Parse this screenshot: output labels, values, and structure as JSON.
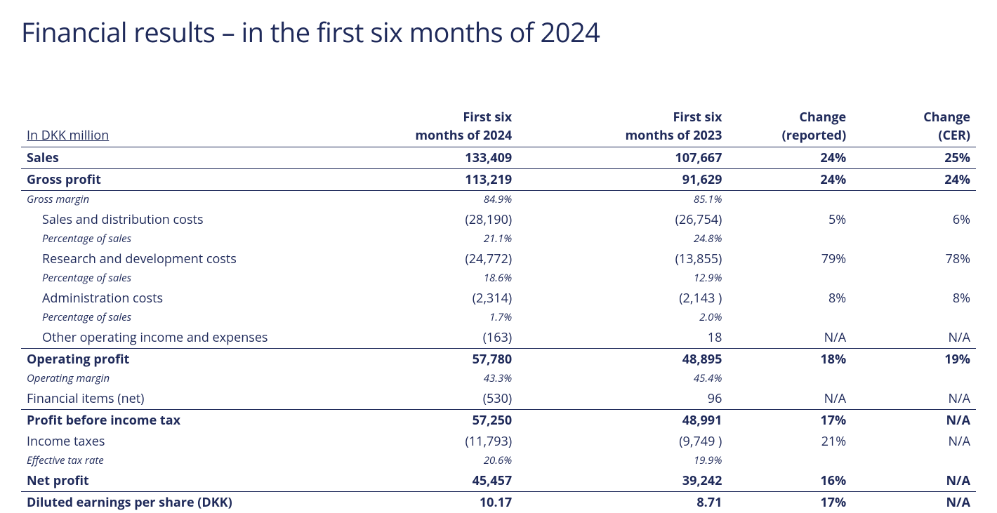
{
  "title": "Financial results – in the first six months of 2024",
  "colors": {
    "text": "#1f2a5a",
    "background": "#ffffff",
    "rule": "#1f2a5a"
  },
  "typography": {
    "title_fontsize_pt": 29,
    "body_fontsize_pt": 14,
    "subnote_fontsize_pt": 11,
    "font_family": "Segoe UI / Open Sans"
  },
  "table": {
    "unit_label": "In DKK million",
    "columns": [
      {
        "line1": "First six",
        "line2": "months of 2024"
      },
      {
        "line1": "First six",
        "line2": "months of 2023"
      },
      {
        "line1": "Change",
        "line2": "(reported)"
      },
      {
        "line1": "Change",
        "line2": "(CER)"
      }
    ],
    "column_widths_pct": [
      34,
      18,
      22,
      13,
      13
    ],
    "rows": [
      {
        "style": "bold-border",
        "label": "Sales",
        "v": [
          "133,409",
          "107,667",
          "24%",
          "25%"
        ]
      },
      {
        "style": "bold thin-border",
        "label": "Gross profit",
        "v": [
          "113,219",
          "91,629",
          "24%",
          "24%"
        ]
      },
      {
        "style": "italic",
        "label": "Gross margin",
        "v": [
          "84.9%",
          "85.1%",
          "",
          ""
        ]
      },
      {
        "style": "",
        "indent": 1,
        "label": "Sales and distribution costs",
        "v": [
          "(28,190)",
          "(26,754)",
          "5%",
          "6%"
        ]
      },
      {
        "style": "italic",
        "indent": 1,
        "label": "Percentage of sales",
        "v": [
          "21.1%",
          "24.8%",
          "",
          ""
        ]
      },
      {
        "style": "",
        "indent": 1,
        "label": "Research and development costs",
        "v": [
          "(24,772)",
          "(13,855)",
          "79%",
          "78%"
        ]
      },
      {
        "style": "italic",
        "indent": 1,
        "label": "Percentage of sales",
        "v": [
          "18.6%",
          "12.9%",
          "",
          ""
        ]
      },
      {
        "style": "",
        "indent": 1,
        "label": "Administration costs",
        "v": [
          "(2,314)",
          "(2,143 )",
          "8%",
          "8%"
        ]
      },
      {
        "style": "italic",
        "indent": 1,
        "label": "Percentage of sales",
        "v": [
          "1.7%",
          "2.0%",
          "",
          ""
        ]
      },
      {
        "style": "thin-border",
        "indent": 1,
        "label": "Other operating income and expenses",
        "v": [
          "(163)",
          "18",
          "N/A",
          "N/A"
        ]
      },
      {
        "style": "bold",
        "label": "Operating profit",
        "v": [
          "57,780",
          "48,895",
          "18%",
          "19%"
        ]
      },
      {
        "style": "italic",
        "label": "Operating margin",
        "v": [
          "43.3%",
          "45.4%",
          "",
          ""
        ]
      },
      {
        "style": "thin-border",
        "label": "Financial items (net)",
        "v": [
          "(530)",
          "96",
          "N/A",
          "N/A"
        ]
      },
      {
        "style": "bold",
        "label": "Profit before income tax",
        "v": [
          "57,250",
          "48,991",
          "17%",
          "N/A"
        ]
      },
      {
        "style": "",
        "label": "Income taxes",
        "v": [
          "(11,793)",
          "(9,749 )",
          "21%",
          "N/A"
        ]
      },
      {
        "style": "italic",
        "label": "Effective tax rate",
        "v": [
          "20.6%",
          "19.9%",
          "",
          ""
        ]
      },
      {
        "style": "bold-border",
        "label": "Net profit",
        "v": [
          "45,457",
          "39,242",
          "16%",
          "N/A"
        ]
      },
      {
        "style": "bold",
        "label": "Diluted earnings per share (DKK)",
        "v": [
          "10.17",
          "8.71",
          "17%",
          "N/A"
        ]
      }
    ]
  }
}
